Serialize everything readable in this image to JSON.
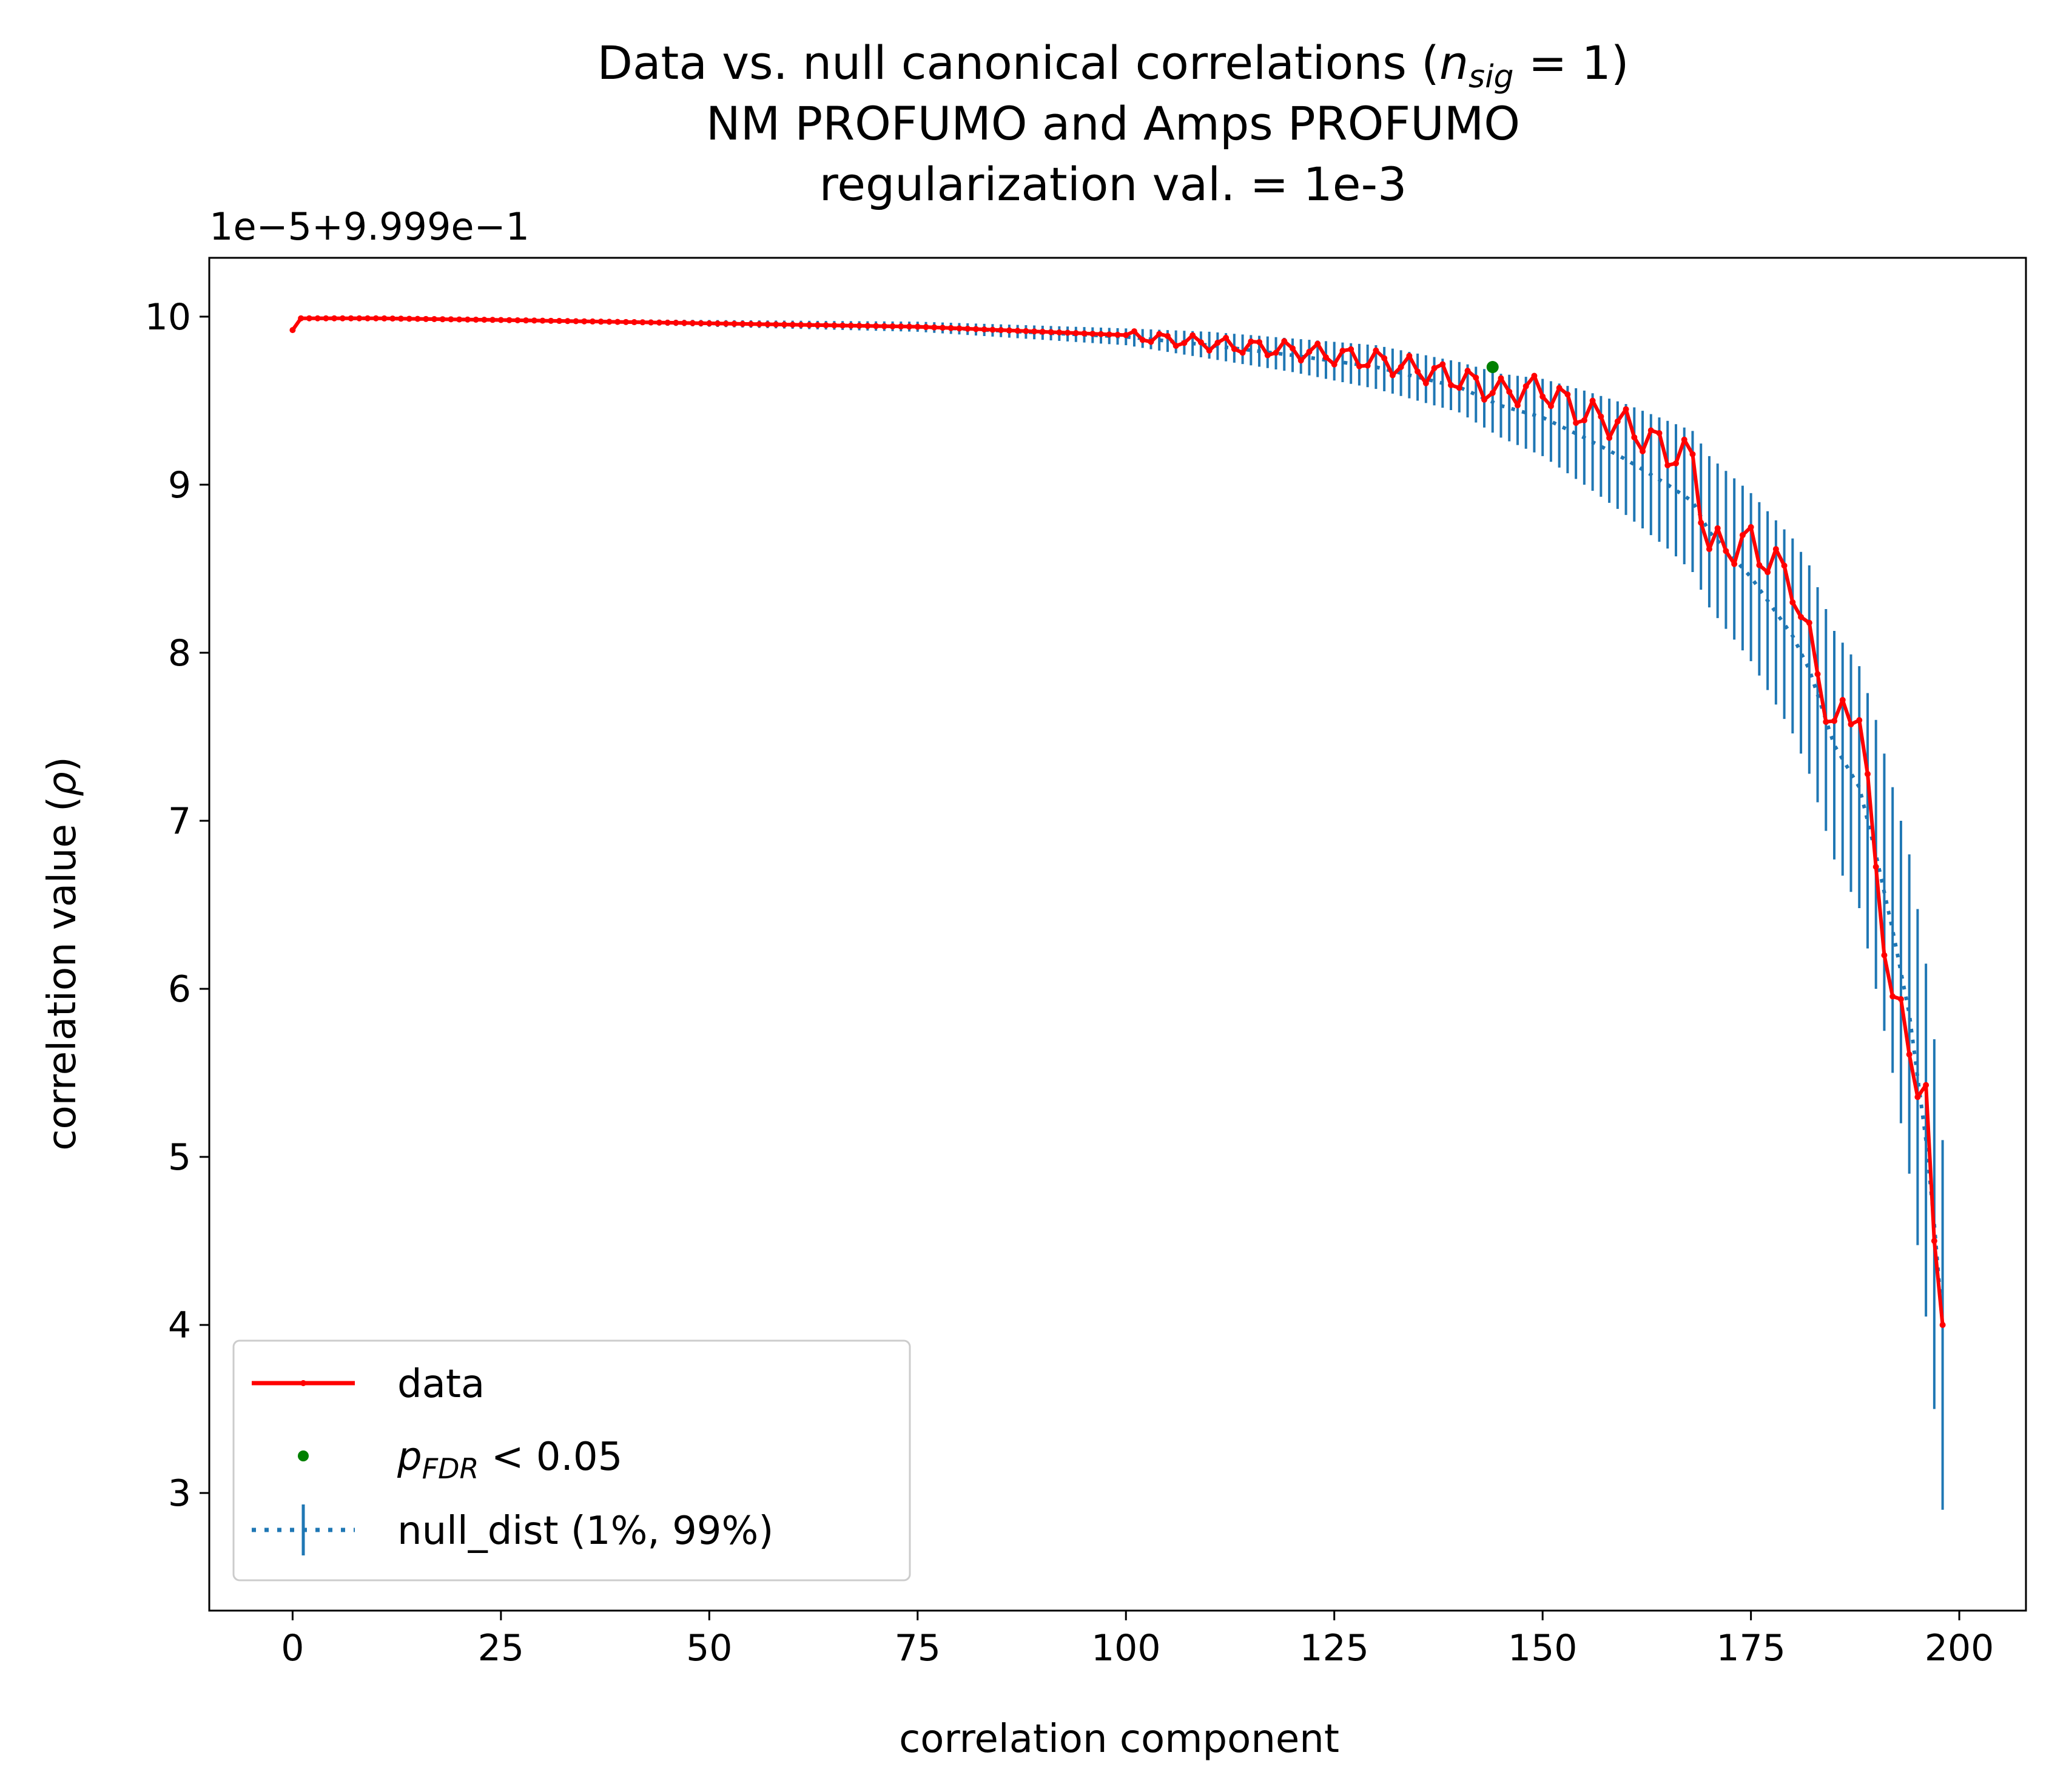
{
  "chart_data": {
    "type": "line",
    "title_lines": [
      {
        "text": "Data vs. null canonical correlations (",
        "math_base": "n",
        "math_sub": "sig",
        "math_rest": " = 1)"
      },
      {
        "text": "NM PROFUMO and Amps PROFUMO"
      },
      {
        "text": "regularization val. = 1e-3"
      }
    ],
    "xlabel": "correlation component",
    "ylabel_text": "correlation value (",
    "ylabel_symbol": "ρ",
    "ylabel_close": ")",
    "y_offset_label": "1e−5+9.999e−1",
    "xlim": [
      -10,
      208
    ],
    "ylim": [
      2.3,
      10.35
    ],
    "x_ticks": [
      0,
      25,
      50,
      75,
      100,
      125,
      150,
      175,
      200
    ],
    "y_ticks": [
      3,
      4,
      5,
      6,
      7,
      8,
      9,
      10
    ],
    "grid": false,
    "legend_position": "lower-left",
    "legend": {
      "data": "data",
      "sig_base": "p",
      "sig_sub": "FDR",
      "sig_rest": " < 0.05",
      "null": "null_dist (1%, 99%)"
    },
    "colors": {
      "data": "#ff0000",
      "null": "#1f77b4",
      "sig": "#008000"
    },
    "anchor_components": [
      0,
      1,
      10,
      25,
      50,
      75,
      100,
      110,
      120,
      130,
      140,
      145,
      150,
      155,
      160,
      165,
      168,
      170,
      175,
      180,
      182,
      185,
      188,
      190,
      192,
      194,
      196,
      197,
      198
    ],
    "data_anchor_values": [
      9.92,
      9.99,
      9.99,
      9.98,
      9.96,
      9.94,
      9.89,
      9.84,
      9.8,
      9.74,
      9.63,
      9.55,
      9.57,
      9.42,
      9.35,
      9.2,
      9.15,
      8.62,
      8.65,
      8.42,
      8.05,
      7.55,
      7.7,
      6.65,
      6.0,
      5.6,
      5.4,
      4.5,
      4.0
    ],
    "null_anchor_median": [
      9.92,
      9.99,
      9.99,
      9.98,
      9.96,
      9.94,
      9.88,
      9.83,
      9.77,
      9.7,
      9.58,
      9.47,
      9.4,
      9.28,
      9.15,
      9.0,
      8.9,
      8.72,
      8.45,
      8.1,
      7.9,
      7.45,
      7.2,
      6.8,
      6.35,
      5.85,
      5.1,
      4.6,
      4.0
    ],
    "null_anchor_halfwidth": [
      0.0,
      0.01,
      0.01,
      0.01,
      0.02,
      0.03,
      0.05,
      0.08,
      0.1,
      0.13,
      0.15,
      0.19,
      0.23,
      0.28,
      0.33,
      0.38,
      0.42,
      0.45,
      0.5,
      0.58,
      0.62,
      0.68,
      0.72,
      0.8,
      0.85,
      0.95,
      1.05,
      1.1,
      1.1
    ],
    "significant_points": [
      {
        "x": 144,
        "y": 9.7
      }
    ]
  }
}
